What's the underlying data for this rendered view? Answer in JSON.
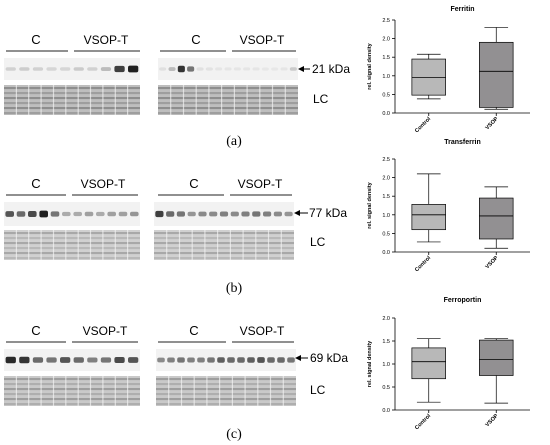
{
  "figure": {
    "panels": [
      {
        "label": "(a)",
        "group_labels": [
          "C",
          "VSOP-T",
          "C",
          "VSOP-T"
        ],
        "marker_label": "21 kDa",
        "loading_control_label": "LC",
        "blot1_intensity": [
          0.12,
          0.14,
          0.12,
          0.1,
          0.1,
          0.15,
          0.12,
          0.22,
          0.8,
          0.95
        ],
        "blot2_intensity": [
          0.05,
          0.22,
          0.85,
          0.55,
          0.05,
          0.04,
          0.03,
          0.03,
          0.03,
          0.03,
          0.03,
          0.02,
          0.02,
          0.03,
          0.15
        ]
      },
      {
        "label": "(b)",
        "group_labels": [
          "C",
          "VSOP-T",
          "C",
          "VSOP-T"
        ],
        "marker_label": "77 kDa",
        "loading_control_label": "LC",
        "blot1_intensity": [
          0.7,
          0.6,
          0.75,
          0.95,
          0.55,
          0.3,
          0.3,
          0.35,
          0.3,
          0.35,
          0.35,
          0.4
        ],
        "blot2_intensity": [
          0.8,
          0.6,
          0.55,
          0.4,
          0.45,
          0.45,
          0.5,
          0.45,
          0.5,
          0.55,
          0.5,
          0.45,
          0.4
        ]
      },
      {
        "label": "(c)",
        "group_labels": [
          "C",
          "VSOP-T",
          "C",
          "VSOP-T"
        ],
        "marker_label": "69 kDa",
        "loading_control_label": "LC",
        "blot1_intensity": [
          0.9,
          0.85,
          0.6,
          0.55,
          0.7,
          0.6,
          0.5,
          0.55,
          0.75,
          0.7
        ],
        "blot2_intensity": [
          0.45,
          0.5,
          0.55,
          0.5,
          0.5,
          0.55,
          0.65,
          0.6,
          0.6,
          0.65,
          0.7,
          0.6,
          0.6,
          0.55
        ]
      }
    ]
  },
  "chart_data": [
    {
      "type": "box",
      "title": "Ferritin",
      "ylabel": "rel. signal density",
      "categories": [
        "Control",
        "VSOP"
      ],
      "ylim": [
        0,
        2.5
      ],
      "yticks": [
        0.0,
        0.5,
        1.0,
        1.5,
        2.0,
        2.5
      ],
      "boxes": [
        {
          "min": 0.38,
          "q1": 0.48,
          "median": 0.95,
          "q3": 1.45,
          "max": 1.58
        },
        {
          "min": 0.1,
          "q1": 0.15,
          "median": 1.12,
          "q3": 1.9,
          "max": 2.3
        }
      ]
    },
    {
      "type": "box",
      "title": "Transferrin",
      "ylabel": "rel. signal density",
      "categories": [
        "Control",
        "VSOP"
      ],
      "ylim": [
        0,
        2.5
      ],
      "yticks": [
        0.0,
        0.5,
        1.0,
        1.5,
        2.0,
        2.5
      ],
      "boxes": [
        {
          "min": 0.27,
          "q1": 0.6,
          "median": 1.0,
          "q3": 1.28,
          "max": 2.1
        },
        {
          "min": 0.1,
          "q1": 0.35,
          "median": 0.97,
          "q3": 1.45,
          "max": 1.75
        }
      ]
    },
    {
      "type": "box",
      "title": "Ferroportin",
      "ylabel": "rel. signal density",
      "categories": [
        "Control",
        "VSOP"
      ],
      "ylim": [
        0,
        2.0
      ],
      "yticks": [
        0.0,
        0.5,
        1.0,
        1.5,
        2.0
      ],
      "boxes": [
        {
          "min": 0.17,
          "q1": 0.68,
          "median": 1.05,
          "q3": 1.35,
          "max": 1.55
        },
        {
          "min": 0.15,
          "q1": 0.75,
          "median": 1.1,
          "q3": 1.52,
          "max": 1.55
        }
      ]
    }
  ]
}
